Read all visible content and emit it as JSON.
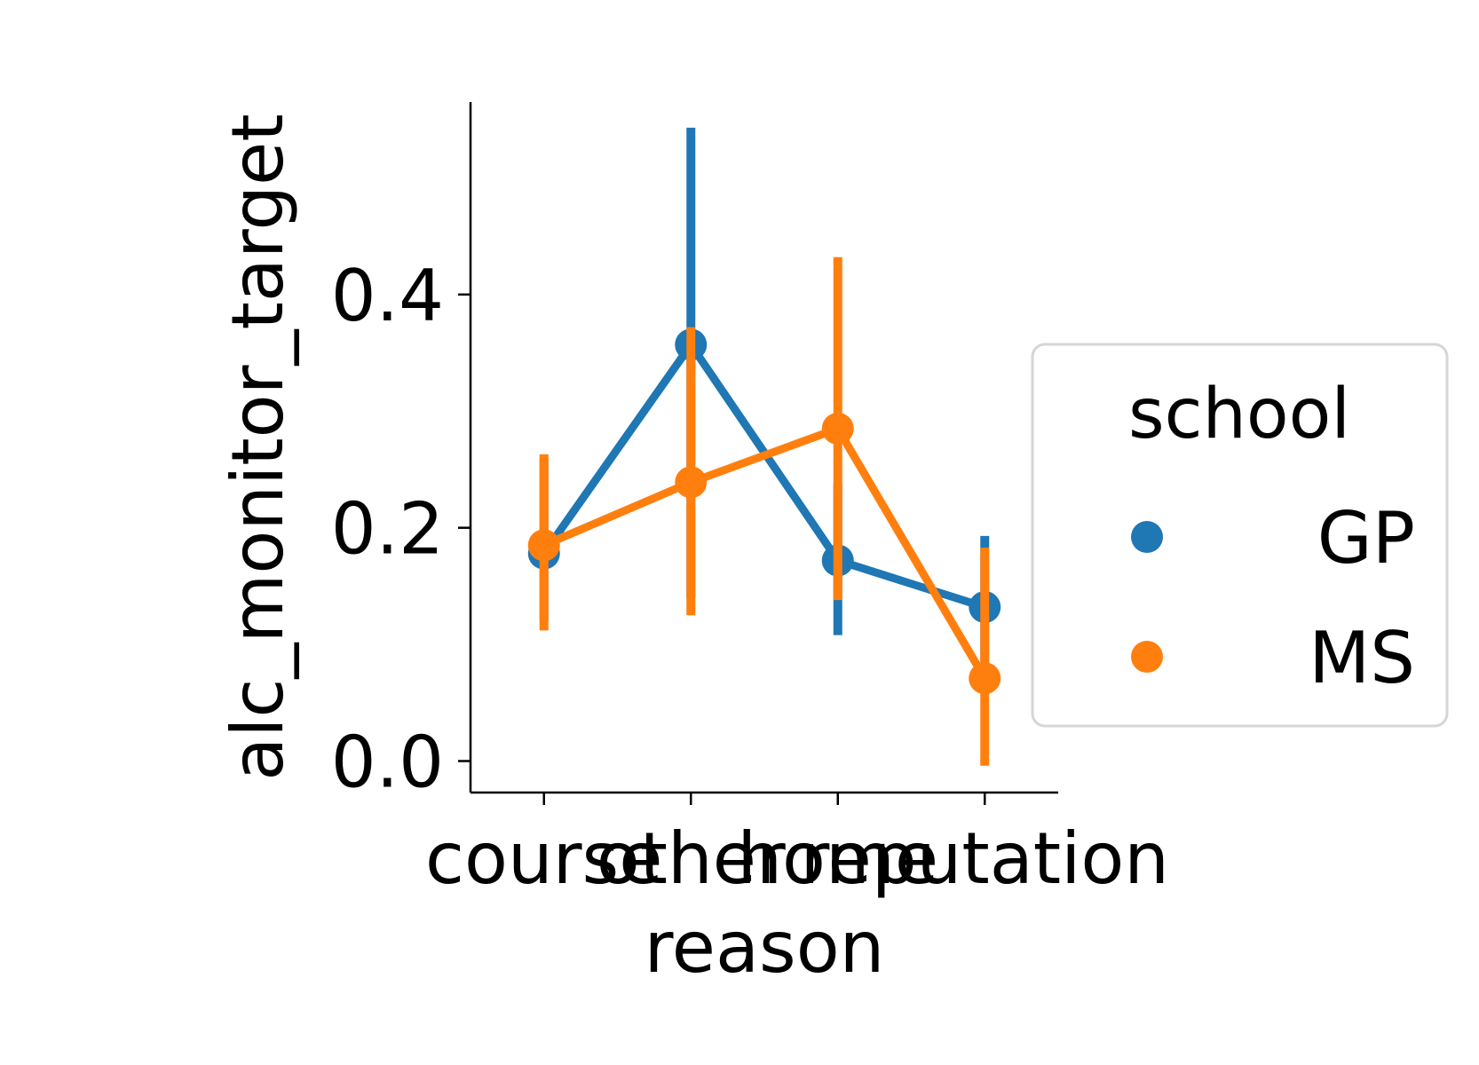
{
  "chart_data": {
    "type": "line",
    "xlabel": "reason",
    "ylabel": "alc_monitor_target",
    "categories": [
      "course",
      "other",
      "home",
      "reputation"
    ],
    "ylim": [
      -0.027,
      0.565
    ],
    "yticks": [
      0.0,
      0.2,
      0.4
    ],
    "ytick_labels": [
      "0.0",
      "0.2",
      "0.4"
    ],
    "grid": false,
    "legend": {
      "title": "school",
      "placement": "center-right"
    },
    "series": [
      {
        "name": "GP",
        "color": "#1f77b4",
        "values": [
          0.178,
          0.357,
          0.172,
          0.132
        ],
        "ci_low": [
          0.12,
          0.14,
          0.108,
          0.085
        ],
        "ci_high": [
          0.26,
          0.543,
          0.238,
          0.193
        ]
      },
      {
        "name": "MS",
        "color": "#ff7f0e",
        "values": [
          0.185,
          0.239,
          0.285,
          0.071
        ],
        "ci_low": [
          0.112,
          0.125,
          0.138,
          -0.004
        ],
        "ci_high": [
          0.263,
          0.372,
          0.432,
          0.183
        ]
      }
    ]
  }
}
